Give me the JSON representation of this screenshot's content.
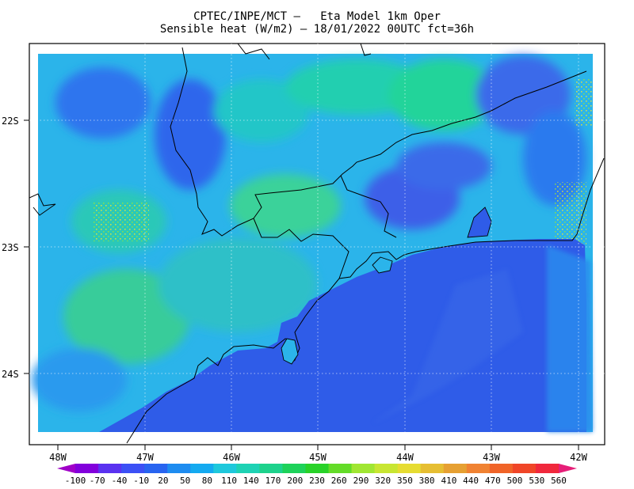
{
  "header": {
    "title_line1": "CPTEC/INPE/MCT –   Eta Model 1km Oper",
    "title_line2": "Sensible heat (W/m2) – 18/01/2022 00UTC fct=36h"
  },
  "map": {
    "lat_labels": [
      "22S",
      "23S",
      "24S"
    ],
    "lon_labels": [
      "48W",
      "47W",
      "46W",
      "45W",
      "44W",
      "43W",
      "42W"
    ],
    "ocean_color": "#2f5ce8",
    "land_base_color": "#29b7ea"
  },
  "colorbar": {
    "labels": [
      "-100",
      "-70",
      "-40",
      "-10",
      "20",
      "50",
      "80",
      "110",
      "140",
      "170",
      "200",
      "230",
      "260",
      "290",
      "320",
      "350",
      "380",
      "410",
      "440",
      "470",
      "500",
      "530",
      "560"
    ],
    "colors": [
      "#a000c8",
      "#8200dc",
      "#5a32f0",
      "#3c50f5",
      "#2864f0",
      "#1e8cf0",
      "#14aaf0",
      "#1ec8dc",
      "#1ed2b4",
      "#1ed28c",
      "#1ed25a",
      "#28d228",
      "#64dc28",
      "#a0e632",
      "#c8e632",
      "#e6dc32",
      "#e6be32",
      "#e6a032",
      "#f08232",
      "#f06428",
      "#f04628",
      "#f0283c",
      "#e61e78"
    ]
  }
}
